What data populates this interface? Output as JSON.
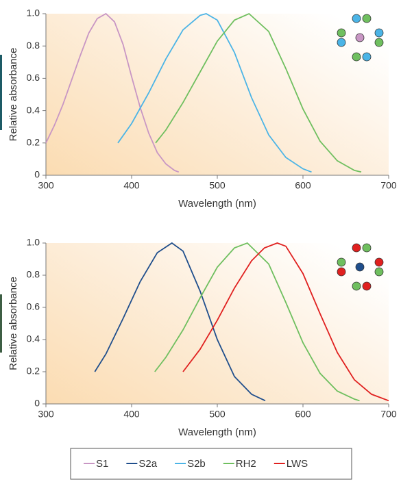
{
  "chart_data": [
    {
      "type": "line",
      "xlabel": "Wavelength (nm)",
      "ylabel": "Relative absorbance",
      "xlim": [
        300,
        700
      ],
      "ylim": [
        0,
        1
      ],
      "xticks": [
        300,
        400,
        500,
        600,
        700
      ],
      "yticks": [
        0,
        0.2,
        0.4,
        0.6,
        0.8,
        {
          "value": 1,
          "label": "1.0"
        }
      ],
      "series": [
        {
          "color": "#c896c4",
          "x": [
            300,
            310,
            320,
            330,
            340,
            350,
            360,
            370,
            380,
            390,
            400,
            410,
            420,
            430,
            440,
            450,
            455
          ],
          "values": [
            0.2,
            0.31,
            0.44,
            0.59,
            0.74,
            0.88,
            0.97,
            1.0,
            0.95,
            0.81,
            0.61,
            0.42,
            0.26,
            0.14,
            0.07,
            0.03,
            0.02
          ]
        },
        {
          "color": "#4bb4e6",
          "x": [
            384,
            400,
            420,
            440,
            460,
            480,
            487,
            500,
            520,
            540,
            560,
            580,
            600,
            610
          ],
          "values": [
            0.2,
            0.32,
            0.51,
            0.72,
            0.9,
            0.99,
            1.0,
            0.96,
            0.76,
            0.48,
            0.25,
            0.11,
            0.04,
            0.02
          ]
        },
        {
          "color": "#6fbf5f",
          "x": [
            428,
            440,
            460,
            480,
            500,
            520,
            537,
            560,
            580,
            600,
            620,
            640,
            660,
            668
          ],
          "values": [
            0.2,
            0.28,
            0.45,
            0.64,
            0.83,
            0.96,
            1.0,
            0.89,
            0.66,
            0.41,
            0.21,
            0.09,
            0.03,
            0.02
          ]
        }
      ]
    },
    {
      "type": "line",
      "xlabel": "Wavelength (nm)",
      "ylabel": "Relative absorbance",
      "xlim": [
        300,
        700
      ],
      "ylim": [
        0,
        1
      ],
      "xticks": [
        300,
        400,
        500,
        600,
        700
      ],
      "yticks": [
        0,
        0.2,
        0.4,
        0.6,
        0.8,
        {
          "value": 1,
          "label": "1.0"
        }
      ],
      "series": [
        {
          "color": "#1f4e8c",
          "x": [
            357,
            370,
            390,
            410,
            430,
            447,
            460,
            480,
            500,
            520,
            540,
            556
          ],
          "values": [
            0.2,
            0.31,
            0.53,
            0.76,
            0.94,
            1.0,
            0.95,
            0.7,
            0.4,
            0.17,
            0.06,
            0.02
          ]
        },
        {
          "color": "#6fbf5f",
          "x": [
            427,
            440,
            460,
            480,
            500,
            520,
            535,
            560,
            580,
            600,
            620,
            640,
            660,
            666
          ],
          "values": [
            0.2,
            0.29,
            0.46,
            0.66,
            0.85,
            0.97,
            1.0,
            0.87,
            0.63,
            0.38,
            0.19,
            0.08,
            0.03,
            0.02
          ]
        },
        {
          "color": "#e0201f",
          "x": [
            460,
            480,
            500,
            520,
            540,
            555,
            570,
            580,
            600,
            620,
            640,
            660,
            680,
            700
          ],
          "values": [
            0.2,
            0.34,
            0.52,
            0.72,
            0.89,
            0.97,
            1.0,
            0.98,
            0.81,
            0.56,
            0.32,
            0.15,
            0.06,
            0.02
          ]
        }
      ]
    }
  ],
  "legend": [
    {
      "name": "S1",
      "color": "#c896c4"
    },
    {
      "name": "S2a",
      "color": "#1f4e8c"
    },
    {
      "name": "S2b",
      "color": "#4bb4e6"
    },
    {
      "name": "RH2",
      "color": "#6fbf5f"
    },
    {
      "name": "LWS",
      "color": "#e0201f"
    }
  ]
}
